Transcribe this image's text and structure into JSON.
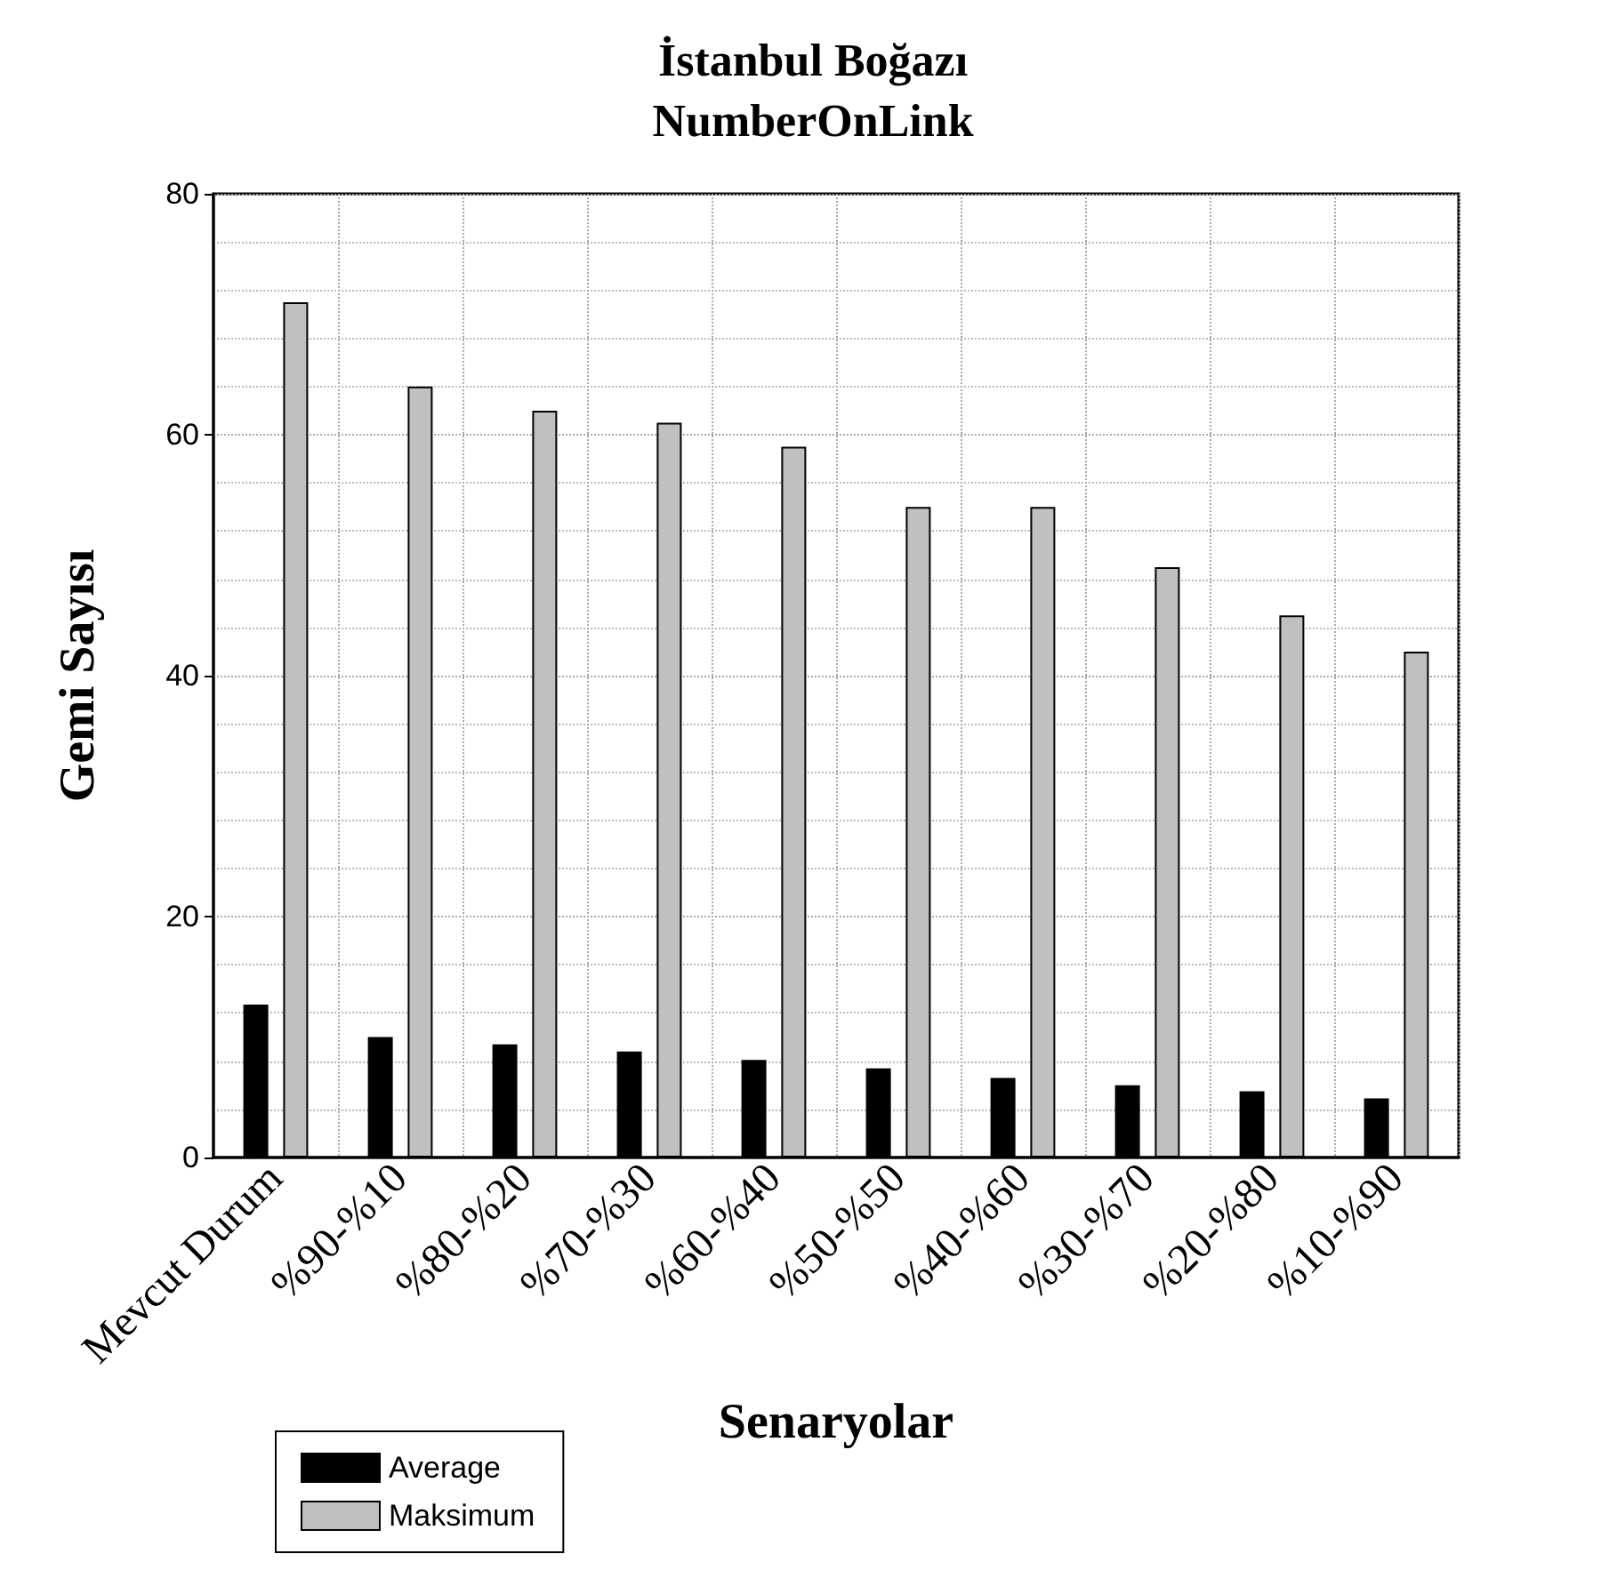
{
  "chart_data": {
    "type": "bar",
    "title": "İstanbul Boğazı\nNumberOnLink",
    "xlabel": "Senaryolar",
    "ylabel": "Gemi Sayısı",
    "categories": [
      "Mevcut Durum",
      "%90-%10",
      "%80-%20",
      "%70-%30",
      "%60-%40",
      "%50-%50",
      "%40-%60",
      "%30-%70",
      "%20-%80",
      "%10-%90"
    ],
    "series": [
      {
        "name": "Average",
        "color": "#000000",
        "values": [
          12.7,
          10.0,
          9.4,
          8.8,
          8.1,
          7.4,
          6.6,
          6.0,
          5.5,
          4.9
        ]
      },
      {
        "name": "Maksimum",
        "color": "#c0c0c0",
        "values": [
          71,
          64,
          62,
          61,
          59,
          54,
          54,
          49,
          45,
          42
        ]
      }
    ],
    "ylim": [
      0,
      80
    ],
    "yticks": [
      0,
      20,
      40,
      60,
      80
    ],
    "grid": true,
    "legend": "bottom left"
  }
}
